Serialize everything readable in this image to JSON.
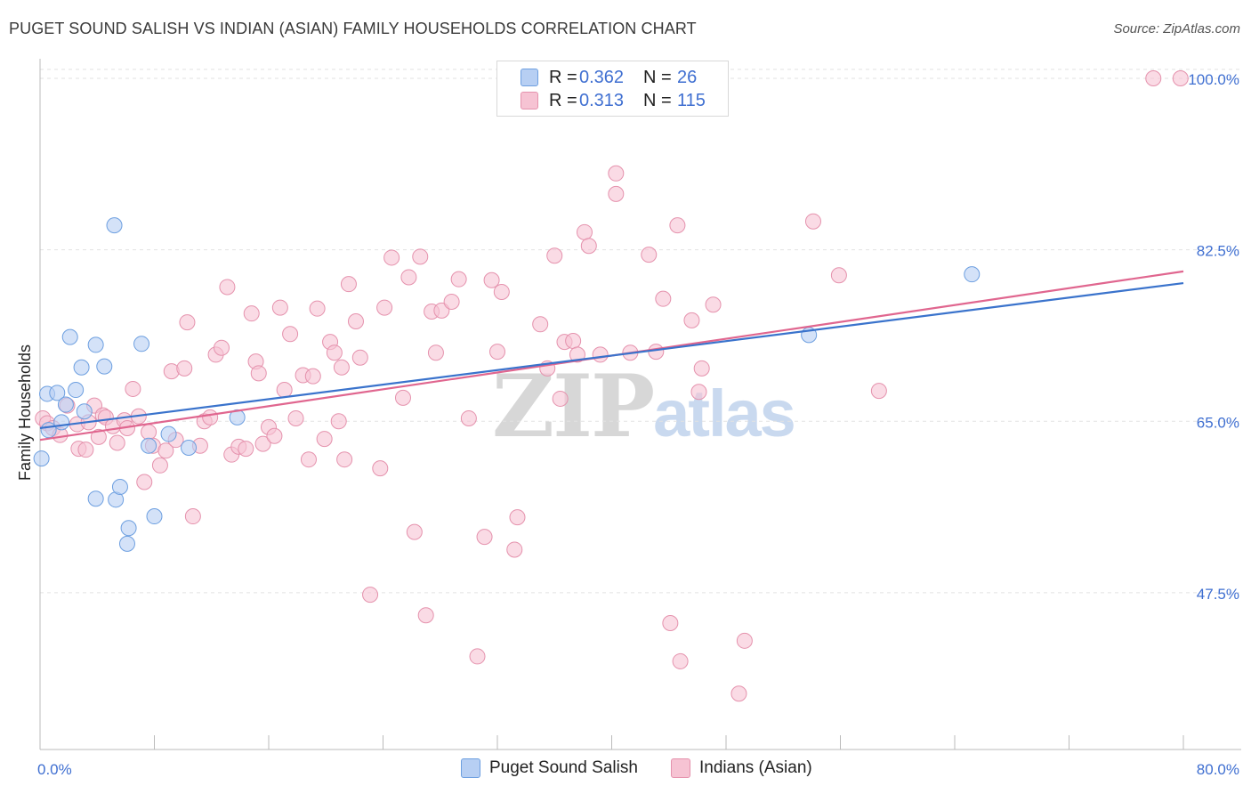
{
  "title": "PUGET SOUND SALISH VS INDIAN (ASIAN) FAMILY HOUSEHOLDS CORRELATION CHART",
  "source": "Source: ZipAtlas.com",
  "watermark": {
    "zip": "ZIP",
    "atlas": "atlas"
  },
  "legend": {
    "rows": [
      {
        "r_label": "R =",
        "r_value": "0.362",
        "n_label": "N =",
        "n_value": "26"
      },
      {
        "r_label": "R =",
        "r_value": "0.313",
        "n_label": "N =",
        "n_value": "115"
      }
    ]
  },
  "colors": {
    "blue_fill": "#b7cff3",
    "blue_stroke": "#6d9fe0",
    "blue_line": "#3a73cc",
    "pink_fill": "#f6c3d3",
    "pink_stroke": "#e592ad",
    "pink_line": "#e0668f",
    "tick_label": "#3f6fd1"
  },
  "chart_data": {
    "type": "scatter",
    "title": "PUGET SOUND SALISH VS INDIAN (ASIAN) FAMILY HOUSEHOLDS CORRELATION CHART",
    "xlabel": "",
    "ylabel": "Family Households",
    "xlim": [
      0,
      80
    ],
    "ylim": [
      31.5,
      102
    ],
    "x_tick_labels": [
      "0.0%",
      "80.0%"
    ],
    "y_ticks": [
      47.5,
      65.0,
      82.5,
      100.0
    ],
    "y_tick_labels": [
      "47.5%",
      "65.0%",
      "82.5%",
      "100.0%"
    ],
    "grid": true,
    "legend_position": "top-center",
    "series": [
      {
        "name": "Puget Sound Salish",
        "color": "#b7cff3",
        "trend": {
          "x": [
            0,
            80
          ],
          "y": [
            64.3,
            79.1
          ]
        },
        "points": [
          [
            0.1,
            61.2
          ],
          [
            0.6,
            64.1
          ],
          [
            0.5,
            67.8
          ],
          [
            1.2,
            67.9
          ],
          [
            1.5,
            64.9
          ],
          [
            1.8,
            66.7
          ],
          [
            2.5,
            68.2
          ],
          [
            2.1,
            73.6
          ],
          [
            2.9,
            70.5
          ],
          [
            3.1,
            66.0
          ],
          [
            3.9,
            72.8
          ],
          [
            4.5,
            70.6
          ],
          [
            5.2,
            85.0
          ],
          [
            3.9,
            57.1
          ],
          [
            5.3,
            57.0
          ],
          [
            5.6,
            58.3
          ],
          [
            6.1,
            52.5
          ],
          [
            6.2,
            54.1
          ],
          [
            7.1,
            72.9
          ],
          [
            7.6,
            62.5
          ],
          [
            8.0,
            55.3
          ],
          [
            9.0,
            63.7
          ],
          [
            10.4,
            62.3
          ],
          [
            13.8,
            65.4
          ],
          [
            65.2,
            80.0
          ],
          [
            53.8,
            73.8
          ]
        ]
      },
      {
        "name": "Indians (Asian)",
        "color": "#f6c3d3",
        "trend": {
          "x": [
            0,
            80
          ],
          "y": [
            63.1,
            80.3
          ]
        },
        "points": [
          [
            0.2,
            65.3
          ],
          [
            0.5,
            64.8
          ],
          [
            0.9,
            64.3
          ],
          [
            1.4,
            63.6
          ],
          [
            1.9,
            66.6
          ],
          [
            2.6,
            64.7
          ],
          [
            2.7,
            62.2
          ],
          [
            3.4,
            64.9
          ],
          [
            3.8,
            66.6
          ],
          [
            3.2,
            62.1
          ],
          [
            4.1,
            63.4
          ],
          [
            4.4,
            65.6
          ],
          [
            4.6,
            65.4
          ],
          [
            5.1,
            64.5
          ],
          [
            5.4,
            62.8
          ],
          [
            5.9,
            65.1
          ],
          [
            6.1,
            64.3
          ],
          [
            6.5,
            68.3
          ],
          [
            6.9,
            65.5
          ],
          [
            7.3,
            58.8
          ],
          [
            7.6,
            63.9
          ],
          [
            7.9,
            62.5
          ],
          [
            8.4,
            60.5
          ],
          [
            8.8,
            62.0
          ],
          [
            9.5,
            63.1
          ],
          [
            9.2,
            70.1
          ],
          [
            10.1,
            70.4
          ],
          [
            10.3,
            75.1
          ],
          [
            10.7,
            55.3
          ],
          [
            11.2,
            62.5
          ],
          [
            11.5,
            65.0
          ],
          [
            11.9,
            65.4
          ],
          [
            12.3,
            71.8
          ],
          [
            12.7,
            72.5
          ],
          [
            13.1,
            78.7
          ],
          [
            13.4,
            61.6
          ],
          [
            13.9,
            62.4
          ],
          [
            14.4,
            62.2
          ],
          [
            14.8,
            76.0
          ],
          [
            15.1,
            71.1
          ],
          [
            15.3,
            69.9
          ],
          [
            15.6,
            62.7
          ],
          [
            16.0,
            64.4
          ],
          [
            16.4,
            63.5
          ],
          [
            16.8,
            76.6
          ],
          [
            17.1,
            68.2
          ],
          [
            17.5,
            73.9
          ],
          [
            17.9,
            65.3
          ],
          [
            18.4,
            69.7
          ],
          [
            18.8,
            61.1
          ],
          [
            19.1,
            69.6
          ],
          [
            19.4,
            76.5
          ],
          [
            19.9,
            63.2
          ],
          [
            20.3,
            73.1
          ],
          [
            20.6,
            72.0
          ],
          [
            20.9,
            65.0
          ],
          [
            21.1,
            70.5
          ],
          [
            21.3,
            61.1
          ],
          [
            21.6,
            79.0
          ],
          [
            22.1,
            75.2
          ],
          [
            22.4,
            71.5
          ],
          [
            23.1,
            47.3
          ],
          [
            23.8,
            60.2
          ],
          [
            24.1,
            76.6
          ],
          [
            24.6,
            81.7
          ],
          [
            25.4,
            67.4
          ],
          [
            25.8,
            79.7
          ],
          [
            26.2,
            53.7
          ],
          [
            26.6,
            81.8
          ],
          [
            27.0,
            45.2
          ],
          [
            27.4,
            76.2
          ],
          [
            27.7,
            72.0
          ],
          [
            28.1,
            76.3
          ],
          [
            28.8,
            77.2
          ],
          [
            29.3,
            79.5
          ],
          [
            30.0,
            65.3
          ],
          [
            30.6,
            41.0
          ],
          [
            31.1,
            53.2
          ],
          [
            31.6,
            79.4
          ],
          [
            32.0,
            72.1
          ],
          [
            32.3,
            78.2
          ],
          [
            33.2,
            51.9
          ],
          [
            33.4,
            55.2
          ],
          [
            35.0,
            74.9
          ],
          [
            35.5,
            70.4
          ],
          [
            36.0,
            81.9
          ],
          [
            36.4,
            67.3
          ],
          [
            36.7,
            73.1
          ],
          [
            37.3,
            73.2
          ],
          [
            37.6,
            71.8
          ],
          [
            38.1,
            84.3
          ],
          [
            38.4,
            82.9
          ],
          [
            39.2,
            71.8
          ],
          [
            40.3,
            88.2
          ],
          [
            40.3,
            90.3
          ],
          [
            41.3,
            72.0
          ],
          [
            42.6,
            82.0
          ],
          [
            43.1,
            72.1
          ],
          [
            43.6,
            77.5
          ],
          [
            44.1,
            44.4
          ],
          [
            44.6,
            85.0
          ],
          [
            44.8,
            40.5
          ],
          [
            45.6,
            75.3
          ],
          [
            46.1,
            68.0
          ],
          [
            46.3,
            70.4
          ],
          [
            47.1,
            76.9
          ],
          [
            48.9,
            37.2
          ],
          [
            49.3,
            42.6
          ],
          [
            54.1,
            85.4
          ],
          [
            55.9,
            79.9
          ],
          [
            58.7,
            68.1
          ],
          [
            77.9,
            100.0
          ],
          [
            79.8,
            100.0
          ]
        ]
      }
    ]
  },
  "bottom_legend": [
    {
      "label": "Puget Sound Salish"
    },
    {
      "label": "Indians (Asian)"
    }
  ]
}
